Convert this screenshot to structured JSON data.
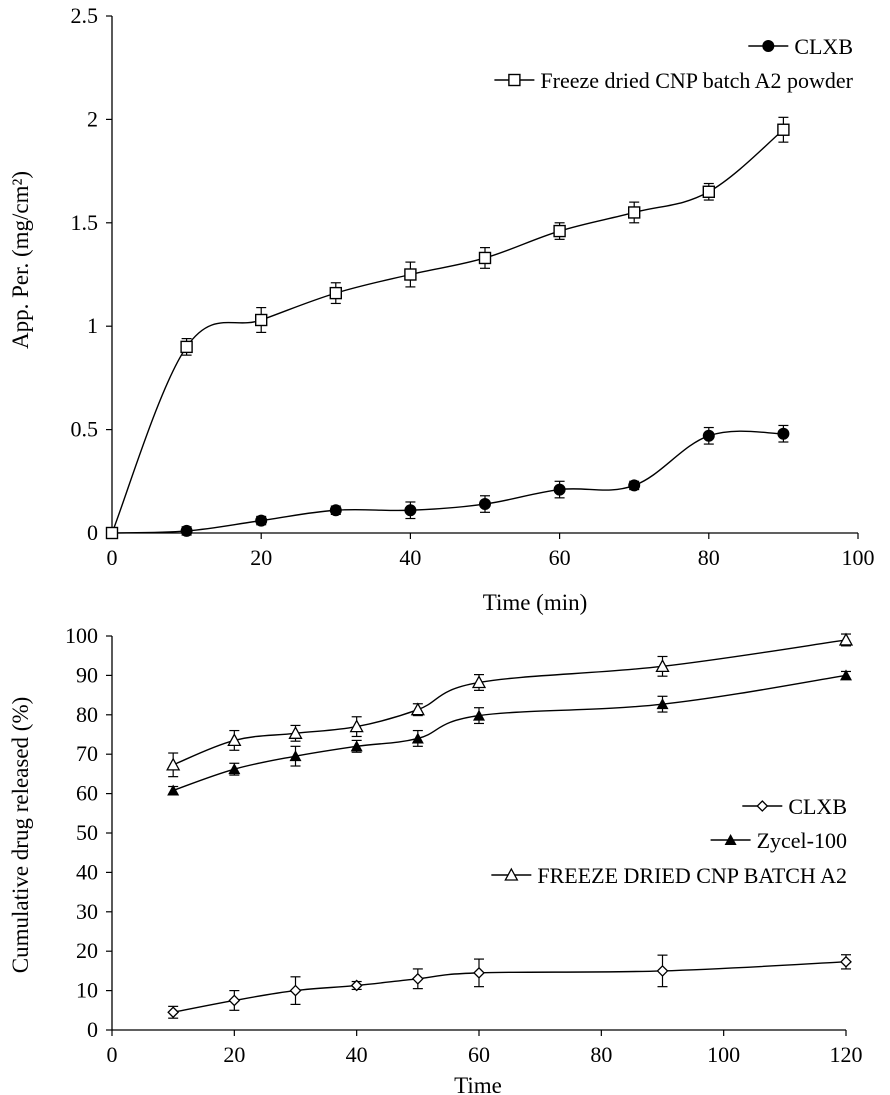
{
  "chart_data": [
    {
      "type": "line",
      "title": "",
      "xlabel": "Time (min)",
      "ylabel": "App. Per. (mg/cm²)",
      "xlim": [
        0,
        100
      ],
      "ylim": [
        0,
        2.5
      ],
      "xticks": [
        0,
        20,
        40,
        60,
        80,
        100
      ],
      "yticks": [
        0,
        0.5,
        1,
        1.5,
        2,
        2.5
      ],
      "xtick_labels": [
        "0",
        "20",
        "40",
        "60",
        "80",
        "100"
      ],
      "ytick_labels": [
        "0",
        "0.5",
        "1",
        "1.5",
        "2",
        "2.5"
      ],
      "grid": false,
      "legend_position": "top-right",
      "series": [
        {
          "name": "CLXB",
          "marker": "filled-circle",
          "x": [
            0,
            10,
            20,
            30,
            40,
            50,
            60,
            70,
            80,
            90
          ],
          "y": [
            0,
            0.01,
            0.06,
            0.11,
            0.11,
            0.14,
            0.21,
            0.23,
            0.47,
            0.48
          ],
          "error": [
            0.01,
            0.02,
            0.02,
            0.02,
            0.04,
            0.04,
            0.04,
            0.02,
            0.04,
            0.04
          ]
        },
        {
          "name": "Freeze dried CNP batch A2 powder",
          "marker": "open-square",
          "x": [
            0,
            10,
            20,
            30,
            40,
            50,
            60,
            70,
            80,
            90
          ],
          "y": [
            0,
            0.9,
            1.03,
            1.16,
            1.25,
            1.33,
            1.46,
            1.55,
            1.65,
            1.95
          ],
          "error": [
            0.01,
            0.04,
            0.06,
            0.05,
            0.06,
            0.05,
            0.04,
            0.05,
            0.04,
            0.06
          ]
        }
      ]
    },
    {
      "type": "line",
      "title": "",
      "xlabel": "Time",
      "ylabel": "Cumulative drug released (%)",
      "xlim": [
        0,
        120
      ],
      "ylim": [
        0,
        100
      ],
      "xticks": [
        0,
        20,
        40,
        60,
        80,
        100,
        120
      ],
      "yticks": [
        0,
        10,
        20,
        30,
        40,
        50,
        60,
        70,
        80,
        90,
        100
      ],
      "xtick_labels": [
        "0",
        "20",
        "40",
        "60",
        "80",
        "100",
        "120"
      ],
      "ytick_labels": [
        "0",
        "10",
        "20",
        "30",
        "40",
        "50",
        "60",
        "70",
        "80",
        "90",
        "100"
      ],
      "grid": false,
      "legend_position": "center-right",
      "series": [
        {
          "name": "CLXB",
          "marker": "open-diamond",
          "x": [
            10,
            20,
            30,
            40,
            50,
            60,
            90,
            120
          ],
          "y": [
            4.5,
            7.5,
            10,
            11.3,
            13,
            14.5,
            15,
            17.3
          ],
          "error": [
            1.5,
            2.5,
            3.5,
            1.0,
            2.5,
            3.5,
            4.0,
            1.8
          ]
        },
        {
          "name": "Zycel-100",
          "marker": "filled-triangle",
          "x": [
            10,
            20,
            30,
            40,
            50,
            60,
            90,
            120
          ],
          "y": [
            60.8,
            66.2,
            69.5,
            72,
            74,
            79.8,
            82.7,
            90
          ],
          "error": [
            1.0,
            1.5,
            2.5,
            1.5,
            2.0,
            2.0,
            2.0,
            1.0
          ]
        },
        {
          "name": "FREEZE DRIED CNP BATCH A2",
          "marker": "open-triangle",
          "x": [
            10,
            20,
            30,
            40,
            50,
            60,
            90,
            120
          ],
          "y": [
            67.3,
            73.5,
            75.3,
            77,
            81.3,
            88.2,
            92.3,
            99
          ],
          "error": [
            3.0,
            2.5,
            2.0,
            2.5,
            1.5,
            2.0,
            2.5,
            1.5
          ]
        }
      ]
    }
  ]
}
